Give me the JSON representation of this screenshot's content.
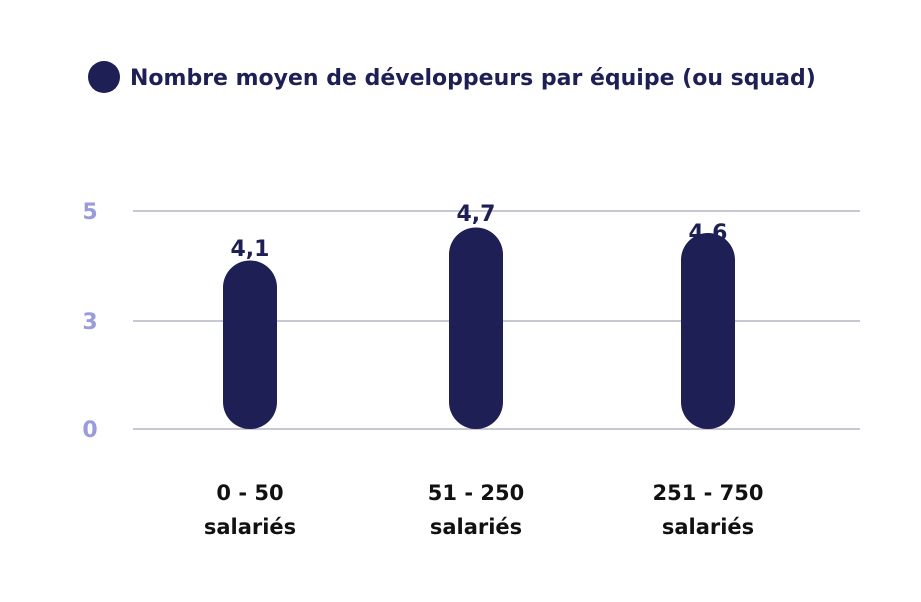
{
  "chart_data": {
    "type": "bar",
    "legend": [
      {
        "label": "Nombre moyen de développeurs par équipe (ou squad)",
        "color": "#1e1f54"
      }
    ],
    "legend_position": "top-left",
    "categories": [
      [
        "0 - 50",
        "salariés"
      ],
      [
        "51 - 250",
        "salariés"
      ],
      [
        "251 - 750",
        "salariés"
      ]
    ],
    "series": [
      {
        "name": "Nombre moyen de développeurs par équipe (ou squad)",
        "values": [
          4.1,
          4.7,
          4.6
        ],
        "value_labels": [
          "4,1",
          "4,7",
          "4,6"
        ],
        "color": "#1e1f54"
      }
    ],
    "yticks": [
      {
        "value": 5,
        "label": "5"
      },
      {
        "value": 3,
        "label": "3"
      },
      {
        "value": 0,
        "label": "0"
      }
    ],
    "ylim": [
      0,
      5
    ],
    "grid": true,
    "colors": {
      "bar": "#1e1f54",
      "tick": "#9a9bdd",
      "grid": "#8f90aa",
      "text": "#1e1f54",
      "category": "#111111"
    }
  }
}
